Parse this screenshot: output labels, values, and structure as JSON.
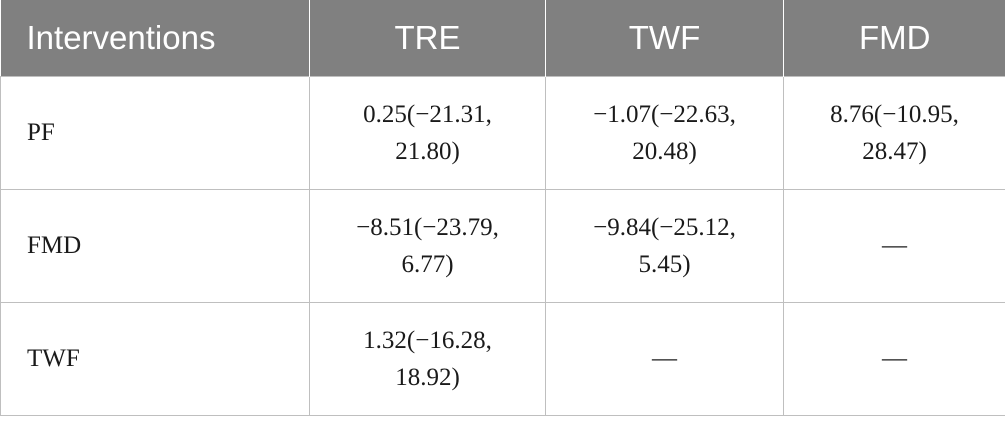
{
  "table": {
    "headers": [
      "Interventions",
      "TRE",
      "TWF",
      "FMD"
    ],
    "rows": [
      {
        "label": "PF",
        "cells": [
          {
            "line1": "0.25(−21.31,",
            "line2": "21.80)"
          },
          {
            "line1": "−1.07(−22.63,",
            "line2": "20.48)"
          },
          {
            "line1": "8.76(−10.95,",
            "line2": "28.47)"
          }
        ]
      },
      {
        "label": "FMD",
        "cells": [
          {
            "line1": "−8.51(−23.79,",
            "line2": "6.77)"
          },
          {
            "line1": "−9.84(−25.12,",
            "line2": "5.45)"
          },
          {
            "line1": "—",
            "line2": ""
          }
        ]
      },
      {
        "label": "TWF",
        "cells": [
          {
            "line1": "1.32(−16.28,",
            "line2": "18.92)"
          },
          {
            "line1": "—",
            "line2": ""
          },
          {
            "line1": "—",
            "line2": ""
          }
        ]
      }
    ]
  }
}
